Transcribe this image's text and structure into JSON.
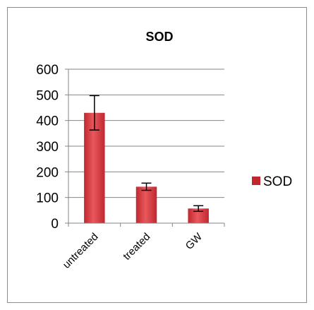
{
  "chart_data": {
    "type": "bar",
    "title": "SOD",
    "categories": [
      "untreated",
      "treated",
      "GW"
    ],
    "series": [
      {
        "name": "SOD",
        "values": [
          430,
          142,
          57
        ],
        "error": [
          67,
          14,
          11
        ]
      }
    ],
    "ylim": [
      0,
      600
    ],
    "yticks": [
      0,
      100,
      200,
      300,
      400,
      500,
      600
    ],
    "grid": true,
    "legend": "right",
    "bar_color": "#c0282e",
    "bar_highlight": "#e8585d",
    "grid_color": "#868686"
  }
}
